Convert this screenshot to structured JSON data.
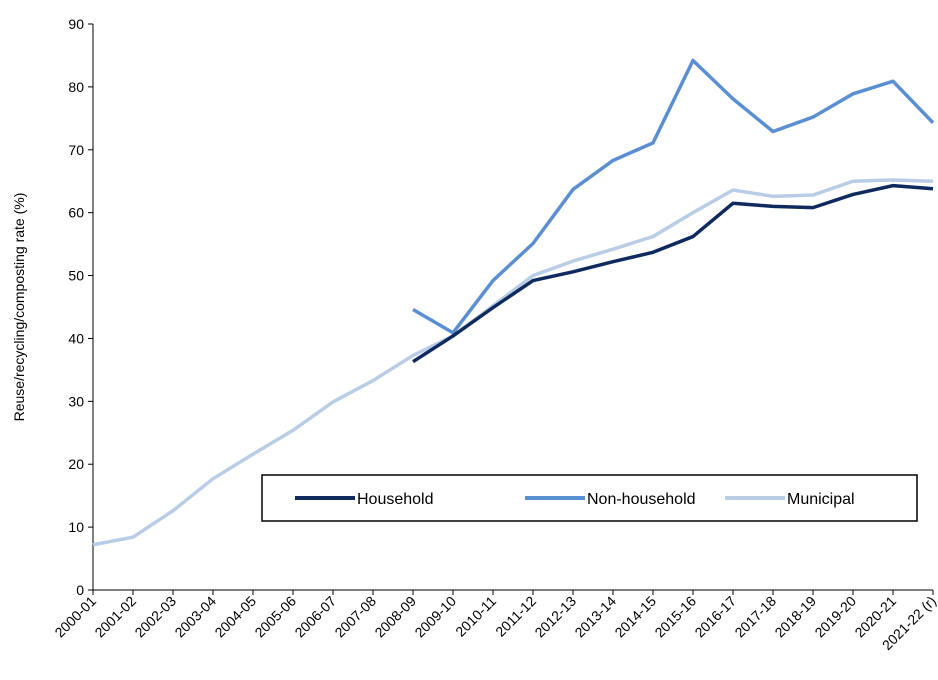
{
  "chart_data": {
    "type": "line",
    "y_label": "Reuse/recycling/composting rate (%)",
    "categories": [
      "2000-01",
      "2001-02",
      "2002-03",
      "2003-04",
      "2004-05",
      "2005-06",
      "2006-07",
      "2007-08",
      "2008-09",
      "2009-10",
      "2010-11",
      "2011-12",
      "2012-13",
      "2013-14",
      "2014-15",
      "2015-16",
      "2016-17",
      "2017-18",
      "2018-19",
      "2019-20",
      "2020-21",
      "2021-22 (r)"
    ],
    "series": [
      {
        "name": "Household",
        "color": "#0f2a5e",
        "values": [
          null,
          null,
          null,
          null,
          null,
          null,
          null,
          null,
          36.3,
          40.4,
          44.9,
          49.2,
          50.6,
          52.2,
          53.7,
          56.2,
          61.5,
          61.0,
          60.8,
          62.9,
          64.3,
          63.8
        ]
      },
      {
        "name": "Non-household",
        "color": "#5b8fd3",
        "values": [
          null,
          null,
          null,
          null,
          null,
          null,
          null,
          null,
          44.6,
          40.9,
          49.2,
          55.1,
          63.7,
          68.3,
          71.1,
          84.2,
          78.1,
          72.9,
          75.2,
          78.9,
          80.9,
          74.3
        ]
      },
      {
        "name": "Municipal",
        "color": "#b9cde6",
        "values": [
          7.2,
          8.4,
          12.6,
          17.7,
          21.6,
          25.4,
          29.9,
          33.3,
          37.3,
          40.4,
          45.2,
          50.0,
          52.3,
          54.2,
          56.2,
          60.0,
          63.6,
          62.6,
          62.8,
          65.0,
          65.2,
          65.0
        ]
      }
    ],
    "ylim": [
      0,
      90
    ],
    "yticks": [
      0,
      10,
      20,
      30,
      40,
      50,
      60,
      70,
      80,
      90
    ],
    "grid": false
  }
}
